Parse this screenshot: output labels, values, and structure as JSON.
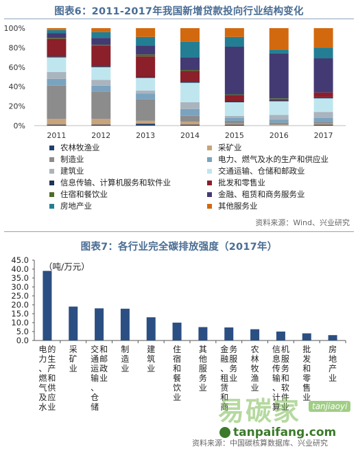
{
  "chart_data": [
    {
      "type": "bar",
      "stacked": true,
      "title": "图表6：2011-2017年我国新增贷款投向行业结构变化",
      "categories": [
        "2011",
        "2012",
        "2013",
        "2014",
        "2015",
        "2016",
        "2017"
      ],
      "ylim": [
        0,
        100
      ],
      "yticks": [
        "0%",
        "20%",
        "40%",
        "60%",
        "80%",
        "100%"
      ],
      "legend_position": "bottom",
      "series": [
        {
          "name": "农林牧渔业",
          "color": "#1f3f6e",
          "values": [
            1,
            1,
            2,
            1,
            1,
            0,
            1
          ]
        },
        {
          "name": "采矿业",
          "color": "#c9a47a",
          "values": [
            6,
            6,
            3,
            3,
            1,
            1,
            1
          ]
        },
        {
          "name": "制造业",
          "color": "#8c8c8c",
          "values": [
            34,
            28,
            22,
            6,
            3,
            2,
            2
          ]
        },
        {
          "name": "电力、燃气及水的生产和供应业",
          "color": "#7aa3bf",
          "values": [
            7,
            6,
            6,
            7,
            3,
            3,
            4
          ]
        },
        {
          "name": "建筑业",
          "color": "#aab4be",
          "values": [
            7,
            6,
            3,
            7,
            2,
            5,
            6
          ]
        },
        {
          "name": "交通运输、仓储和邮政业",
          "color": "#bfe6ef",
          "values": [
            15,
            13,
            13,
            20,
            14,
            14,
            14
          ]
        },
        {
          "name": "信息传输、计算机服务和软件业",
          "color": "#1e3355",
          "values": [
            1,
            1,
            1,
            1,
            1,
            1,
            1
          ]
        },
        {
          "name": "批发和零售业",
          "color": "#8b1f2a",
          "values": [
            18,
            21,
            21,
            11,
            6,
            1,
            5
          ]
        },
        {
          "name": "住宿和餐饮业",
          "color": "#4f6b2a",
          "values": [
            1,
            1,
            2,
            1,
            1,
            1,
            0
          ]
        },
        {
          "name": "金融、租赁和商务服务业",
          "color": "#443a73",
          "values": [
            5,
            7,
            9,
            13,
            49,
            46,
            35
          ]
        },
        {
          "name": "房地产业",
          "color": "#237e93",
          "values": [
            3,
            6,
            9,
            16,
            10,
            4,
            11
          ]
        },
        {
          "name": "其他服务业",
          "color": "#d2690f",
          "values": [
            2,
            4,
            9,
            14,
            9,
            22,
            20
          ]
        }
      ],
      "source": "资料来源：Wind、兴业研究"
    },
    {
      "type": "bar",
      "title": "图表7：各行业完全碳排放强度（2017年）",
      "unit": "（吨/万元）",
      "color": "#2b4f82",
      "ylim": [
        0,
        45
      ],
      "yticks": [
        "0.0",
        "5.0",
        "10.0",
        "15.0",
        "20.0",
        "25.0",
        "30.0",
        "35.0",
        "40.0",
        "45.0"
      ],
      "categories": [
        "电力、燃气及水的生产和供应业",
        "采矿业",
        "交通运输、仓储和邮政业",
        "制造业",
        "建筑业",
        "住宿和餐饮业",
        "其他服务业",
        "金融、租赁和商务服务业",
        "农林牧渔业",
        "信息传输、计算机服务和软件业",
        "批发和零售业",
        "房地产业"
      ],
      "labels": [
        "电力、燃气及水的生产和供应业",
        "采矿业",
        "交通运输、仓储和邮政业",
        "制造业",
        "建筑业",
        "住宿和餐饮业",
        "其他服务业",
        "金融、租赁和商务服务业",
        "农林牧渔业",
        "信息传输、计算机服务和软件业",
        "批发和零售业",
        "房地产业"
      ],
      "values": [
        39.0,
        19.0,
        18.0,
        17.8,
        13.0,
        10.0,
        7.5,
        7.3,
        6.3,
        5.0,
        4.0,
        3.0
      ],
      "source": "资料来源：中国碳核算数据库、兴业研究"
    }
  ],
  "watermark": {
    "big": "易碳家",
    "tag": "tanjiaoyi",
    "url": "tanpaifang.com"
  }
}
